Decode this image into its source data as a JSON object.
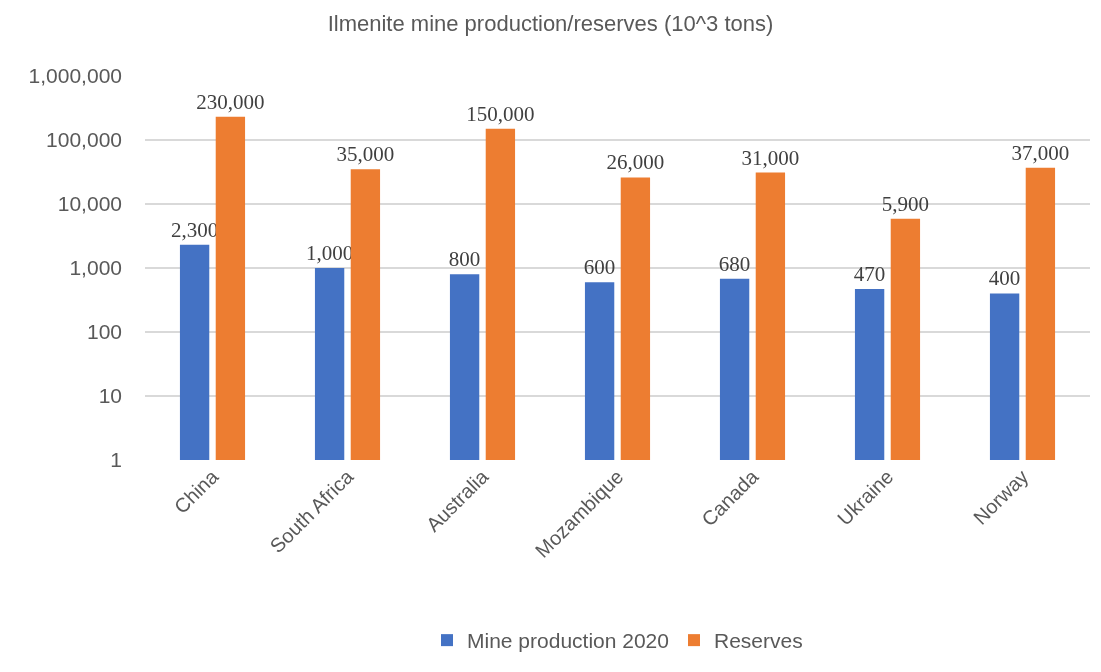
{
  "chart_data": {
    "type": "bar",
    "title": "Ilmenite mine production/reserves (10^3 tons)",
    "categories": [
      "China",
      "South Africa",
      "Australia",
      "Mozambique",
      "Canada",
      "Ukraine",
      "Norway"
    ],
    "series": [
      {
        "name": "Mine production 2020",
        "color": "#4472c4",
        "values": [
          2300,
          1000,
          800,
          600,
          680,
          470,
          400
        ],
        "value_labels": [
          "2,300",
          "1,000",
          "800",
          "600",
          "680",
          "470",
          "400"
        ]
      },
      {
        "name": "Reserves",
        "color": "#ed7d31",
        "values": [
          230000,
          35000,
          150000,
          26000,
          31000,
          5900,
          37000
        ],
        "value_labels": [
          "230,000",
          "35,000",
          "150,000",
          "26,000",
          "31,000",
          "5,900",
          "37,000"
        ]
      }
    ],
    "log": true,
    "ylim": [
      1,
      1000000
    ],
    "yticks": [
      1,
      10,
      100,
      {
        "value": 1000,
        "label": "1,000"
      },
      {
        "value": 10000,
        "label": "10,000"
      },
      {
        "value": 100000,
        "label": "100,000"
      },
      {
        "value": 1000000,
        "label": "1,000,000"
      }
    ],
    "grid": "y",
    "legend": "bottom"
  }
}
